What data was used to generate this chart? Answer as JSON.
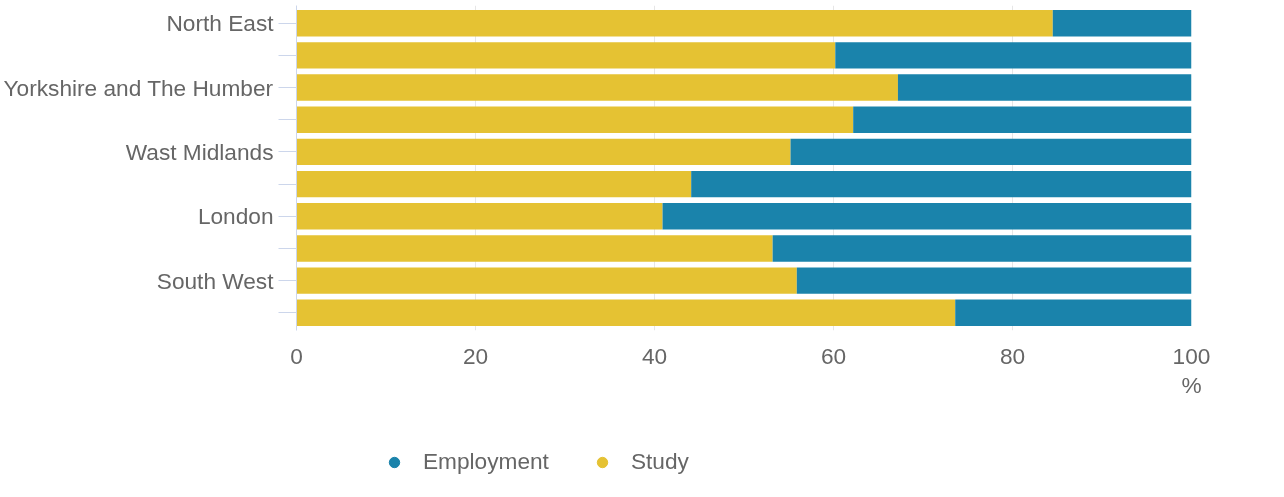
{
  "chart_data": {
    "type": "bar",
    "orientation": "horizontal",
    "stacked": true,
    "categories": [
      "North East",
      null,
      "Yorkshire and The Humber",
      null,
      "Wast Midlands",
      null,
      "London",
      null,
      "South West",
      null
    ],
    "series": [
      {
        "name": "Study",
        "color": "#e5c233",
        "values": [
          84.5,
          60.2,
          67.2,
          62.2,
          55.2,
          44.1,
          40.9,
          53.2,
          55.9,
          73.6
        ]
      },
      {
        "name": "Employment",
        "color": "#1a83ab",
        "values": [
          15.5,
          39.8,
          32.8,
          37.8,
          44.8,
          55.9,
          59.1,
          46.8,
          44.1,
          26.4
        ]
      }
    ],
    "xlim": [
      0,
      100
    ],
    "xticks": [
      0,
      20,
      40,
      60,
      80,
      100
    ],
    "xlabel": "%",
    "grid": "x",
    "legend": "bottom left"
  }
}
